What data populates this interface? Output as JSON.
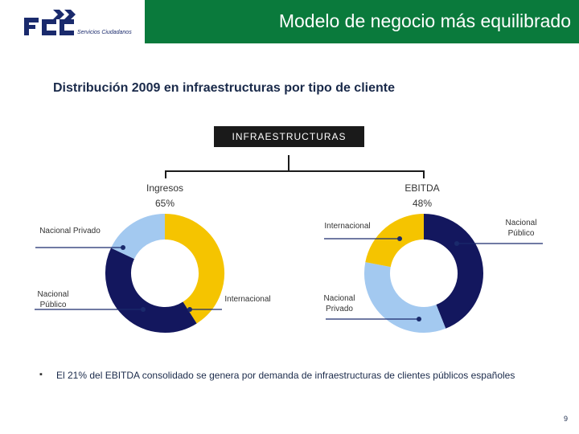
{
  "header": {
    "logo_text": "FCC",
    "logo_subtitle": "Servicios Ciudadanos",
    "title": "Modelo de negocio más equilibrado",
    "colors": {
      "bar": "#0a7a3c",
      "logo_blue": "#1a2a6c"
    }
  },
  "subtitle": "Distribución 2009 en infraestructuras por tipo de cliente",
  "root_box": "INFRAESTRUCTURAS",
  "chart_data": [
    {
      "type": "pie",
      "variant": "donut",
      "title": "Ingresos",
      "value_label": "65%",
      "segments": [
        {
          "label": "Internacional",
          "value": 41,
          "color": "#f5c400"
        },
        {
          "label": "Nacional Público",
          "value": 41,
          "color": "#13175e"
        },
        {
          "label": "Nacional Privado",
          "value": 18,
          "color": "#a3c9f0"
        }
      ]
    },
    {
      "type": "pie",
      "variant": "donut",
      "title": "EBITDA",
      "value_label": "48%",
      "segments": [
        {
          "label": "Nacional Público",
          "value": 44,
          "color": "#13175e"
        },
        {
          "label": "Nacional Privado",
          "value": 34,
          "color": "#a3c9f0"
        },
        {
          "label": "Internacional",
          "value": 22,
          "color": "#f5c400"
        }
      ]
    }
  ],
  "bullet": {
    "marker": "▪",
    "text": "El 21% del EBITDA consolidado se genera por demanda de infraestructuras de clientes públicos españoles"
  },
  "page_number": "9"
}
